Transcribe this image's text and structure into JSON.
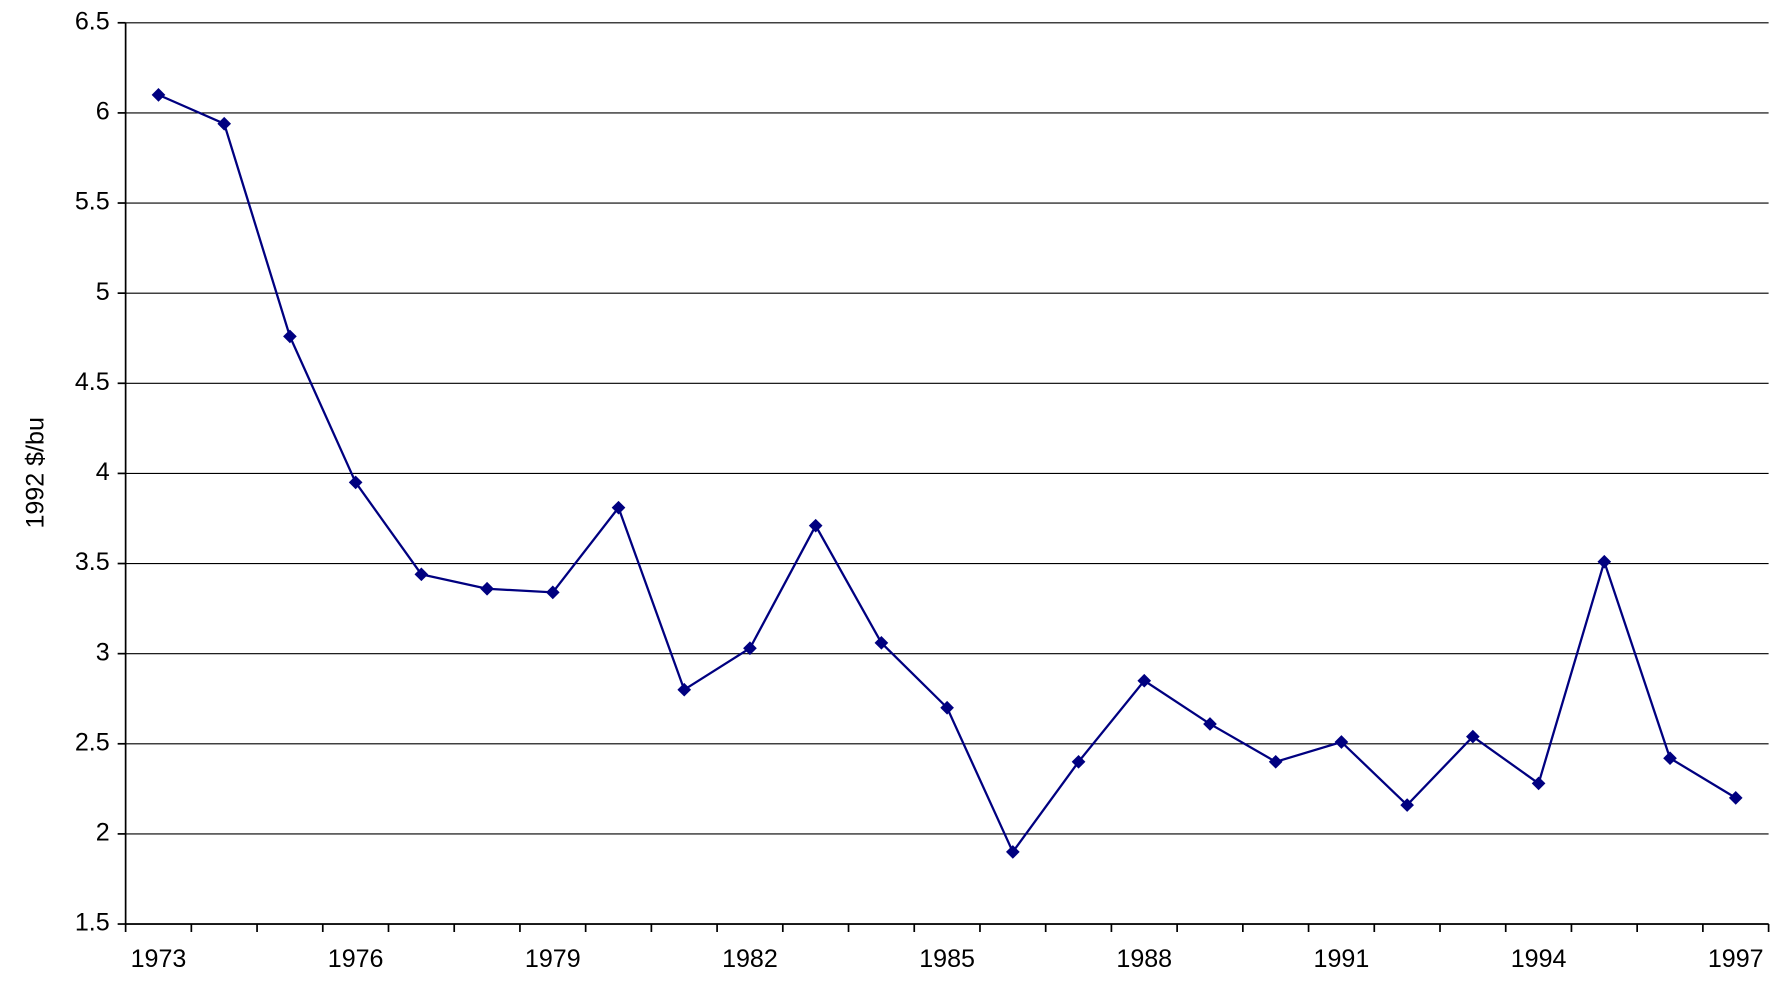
{
  "chart_data": {
    "type": "line",
    "y_label": "1992 $/bu",
    "categories": [
      "1973",
      null,
      null,
      "1976",
      null,
      null,
      "1979",
      null,
      null,
      "1982",
      null,
      null,
      "1985",
      null,
      null,
      "1988",
      null,
      null,
      "1991",
      null,
      null,
      "1994",
      null,
      null,
      "1997"
    ],
    "values": [
      6.1,
      5.94,
      4.76,
      3.95,
      3.44,
      3.36,
      3.34,
      3.81,
      2.8,
      3.03,
      3.71,
      3.06,
      2.7,
      1.9,
      2.4,
      2.85,
      2.61,
      2.4,
      2.51,
      2.16,
      2.54,
      2.28,
      3.51,
      2.42,
      2.2
    ],
    "color": "#000080",
    "marker": "diamond",
    "ylim": [
      1.5,
      6.5
    ],
    "yticks": [
      1.5,
      2,
      2.5,
      3,
      3.5,
      4,
      4.5,
      5,
      5.5,
      6,
      6.5
    ],
    "grid": true
  }
}
